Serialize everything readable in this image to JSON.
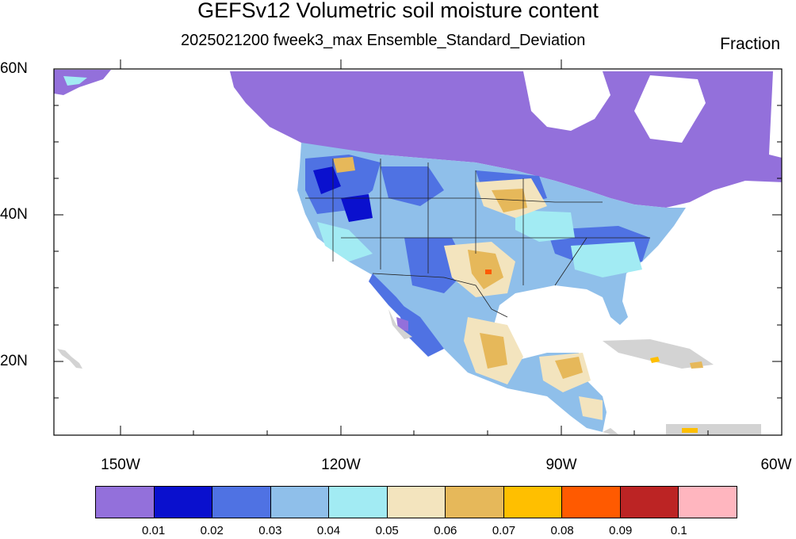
{
  "title": "GEFSv12 Volumetric soil moisture content",
  "subtitle": "2025021200 fweek3_max Ensemble_Standard_Deviation",
  "units": "Fraction",
  "lat_labels": [
    "60N",
    "40N",
    "20N"
  ],
  "lon_labels": [
    "150W",
    "120W",
    "90W",
    "60W"
  ],
  "colorbar": {
    "colors": [
      "#9370DB",
      "#0A10CE",
      "#4F72E3",
      "#8FBFEA",
      "#A2EBF3",
      "#F3E4BE",
      "#E6B85A",
      "#FFBF00",
      "#FF5A00",
      "#BC2424",
      "#FFB6BF"
    ],
    "labels": [
      "0.01",
      "0.02",
      "0.03",
      "0.04",
      "0.05",
      "0.06",
      "0.07",
      "0.08",
      "0.09",
      "0.1"
    ]
  },
  "colors": {
    "no_data": "#D3D3D3",
    "ocean": "#FFFFFF"
  }
}
